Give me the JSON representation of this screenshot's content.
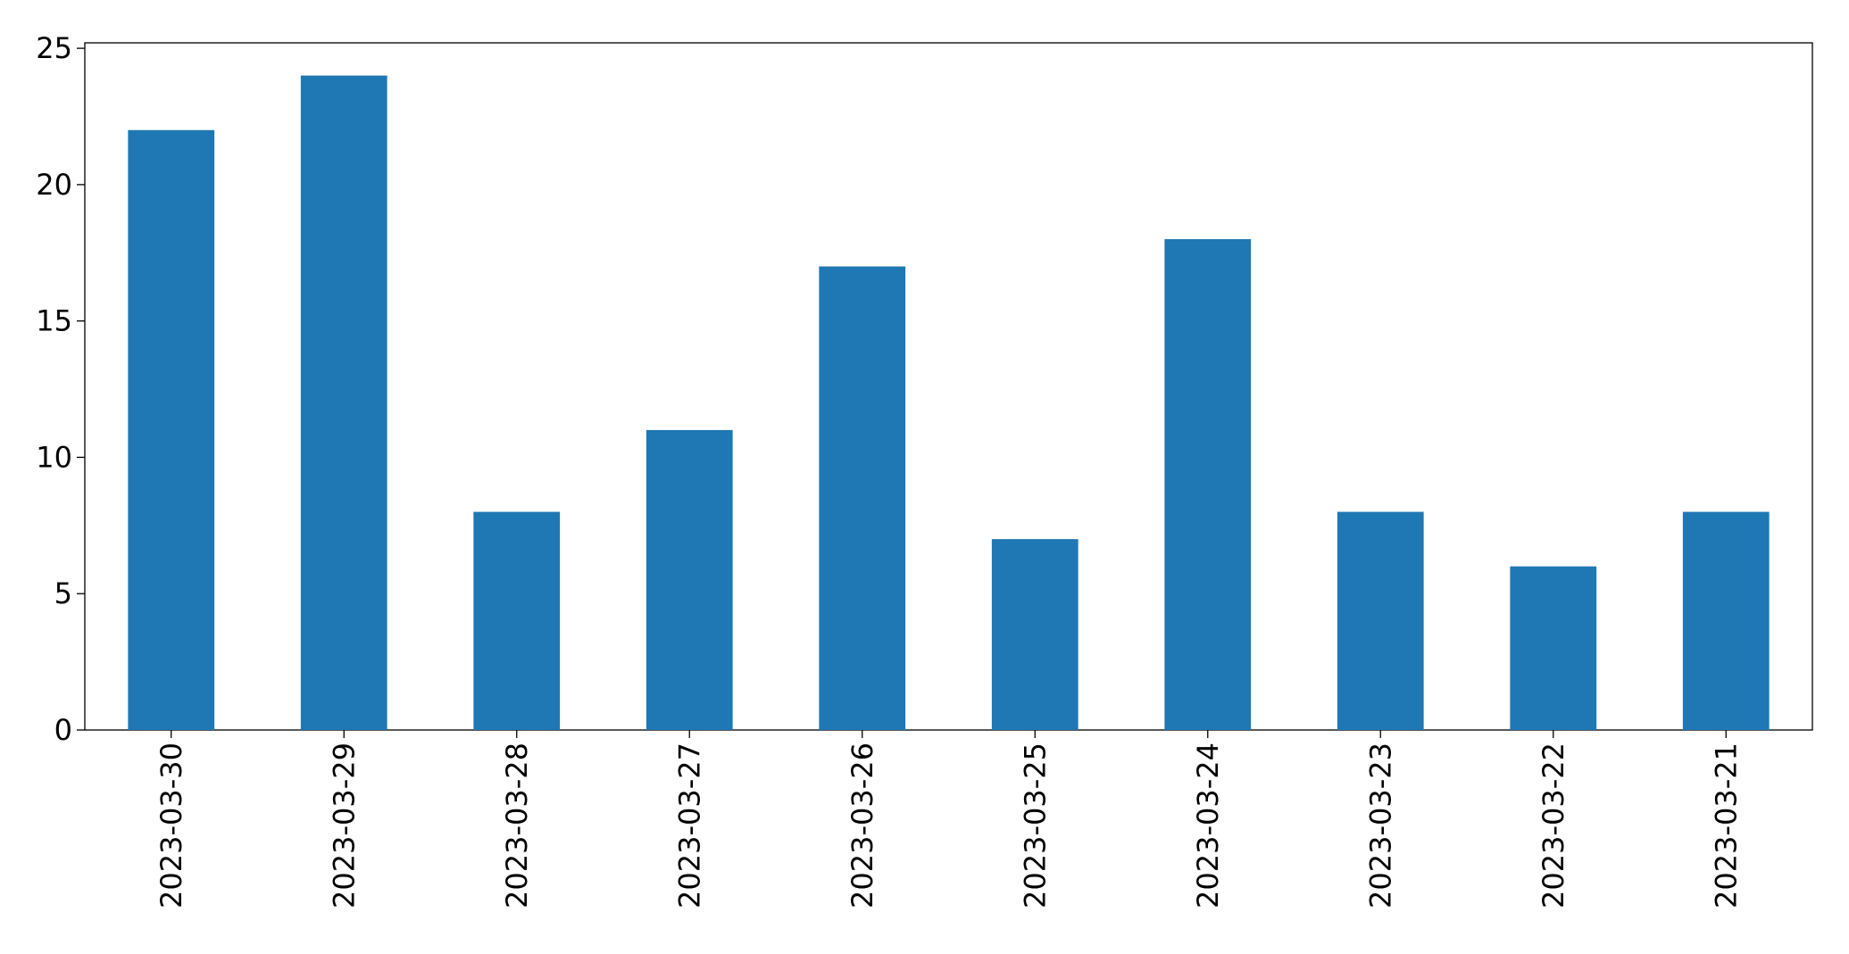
{
  "chart_data": {
    "type": "bar",
    "categories": [
      "2023-03-30",
      "2023-03-29",
      "2023-03-28",
      "2023-03-27",
      "2023-03-26",
      "2023-03-25",
      "2023-03-24",
      "2023-03-23",
      "2023-03-22",
      "2023-03-21"
    ],
    "values": [
      22,
      24,
      8,
      11,
      17,
      7,
      18,
      8,
      6,
      8
    ],
    "color": "#1f77b4",
    "ylim": [
      0,
      25.2
    ],
    "yticks": [
      0,
      5,
      10,
      15,
      20,
      25
    ],
    "grid": false
  }
}
